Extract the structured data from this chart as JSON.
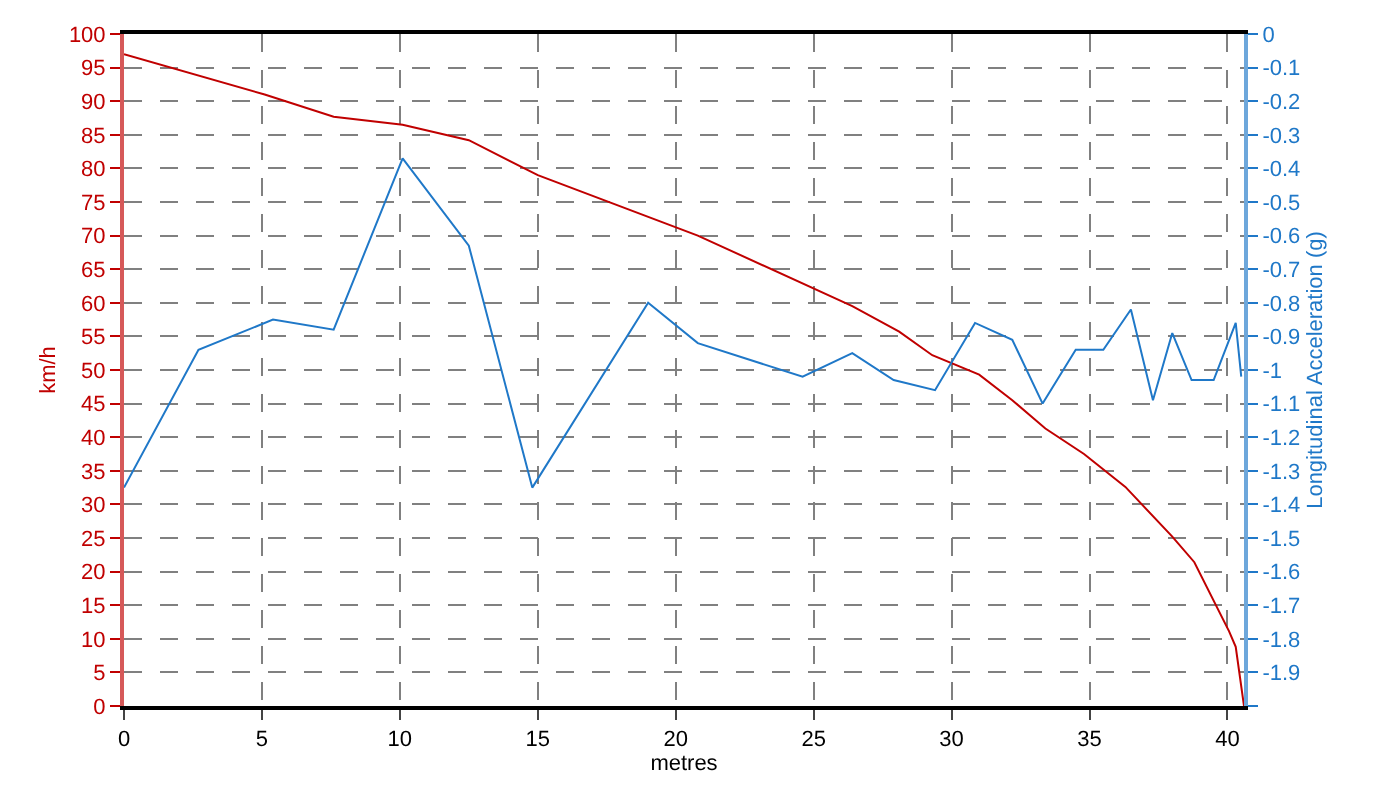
{
  "chart_data": {
    "type": "line",
    "xlabel": "metres",
    "ylabel": "km/h",
    "y2label": "Longitudinal Acceleration (g)",
    "xlim": [
      0,
      40.6
    ],
    "xticks": [
      0,
      5,
      10,
      15,
      20,
      25,
      30,
      35,
      40
    ],
    "ylim": [
      0,
      100
    ],
    "yticks": [
      0,
      5,
      10,
      15,
      20,
      25,
      30,
      35,
      40,
      45,
      50,
      55,
      60,
      65,
      70,
      75,
      80,
      85,
      90,
      95,
      100
    ],
    "y2lim": [
      -2,
      0
    ],
    "y2ticks": [
      0,
      -0.1,
      -0.2,
      -0.3,
      -0.4,
      -0.5,
      -0.6,
      -0.7,
      -0.8,
      -0.9,
      -1,
      -1.1,
      -1.2,
      -1.3,
      -1.4,
      -1.5,
      -1.6,
      -1.7,
      -1.8,
      -1.9,
      {
        "value": -2,
        "label": null
      }
    ],
    "grid": true,
    "line_style": "solid",
    "marker": "none",
    "series": [
      {
        "color": "#c00000",
        "x": [
          0,
          5.1,
          7.6,
          10.1,
          12.5,
          15,
          20.8,
          26.4,
          28.1,
          29.3,
          31,
          32.2,
          33.4,
          34.8,
          36.3,
          38,
          38.8,
          40.06,
          40.3,
          40.6
        ],
        "values": [
          97,
          91,
          87.7,
          86.5,
          84.2,
          79,
          70,
          59.5,
          55.7,
          52.2,
          49.3,
          45.5,
          41.3,
          37.5,
          32.6,
          25.2,
          21.4,
          11.1,
          8.8,
          0
        ]
      },
      {
        "color": "#1f78c8",
        "axis": "y2",
        "x": [
          0,
          2.7,
          5.4,
          7.6,
          10.1,
          12.5,
          14.8,
          19,
          20.8,
          24.6,
          26.4,
          27.9,
          29.4,
          30.85,
          32.2,
          33.3,
          34.5,
          35.5,
          36.5,
          37.3,
          38,
          38.7,
          39.5,
          40.3,
          40.5
        ],
        "values": [
          -1.35,
          -0.94,
          -0.85,
          -0.88,
          -0.37,
          -0.63,
          -1.35,
          -0.8,
          -0.92,
          -1.02,
          -0.95,
          -1.03,
          -1.06,
          -0.86,
          -0.91,
          -1.1,
          -0.94,
          -0.94,
          -0.82,
          -1.09,
          -0.89,
          -1.03,
          -1.03,
          -0.86,
          -1.02
        ]
      }
    ]
  }
}
